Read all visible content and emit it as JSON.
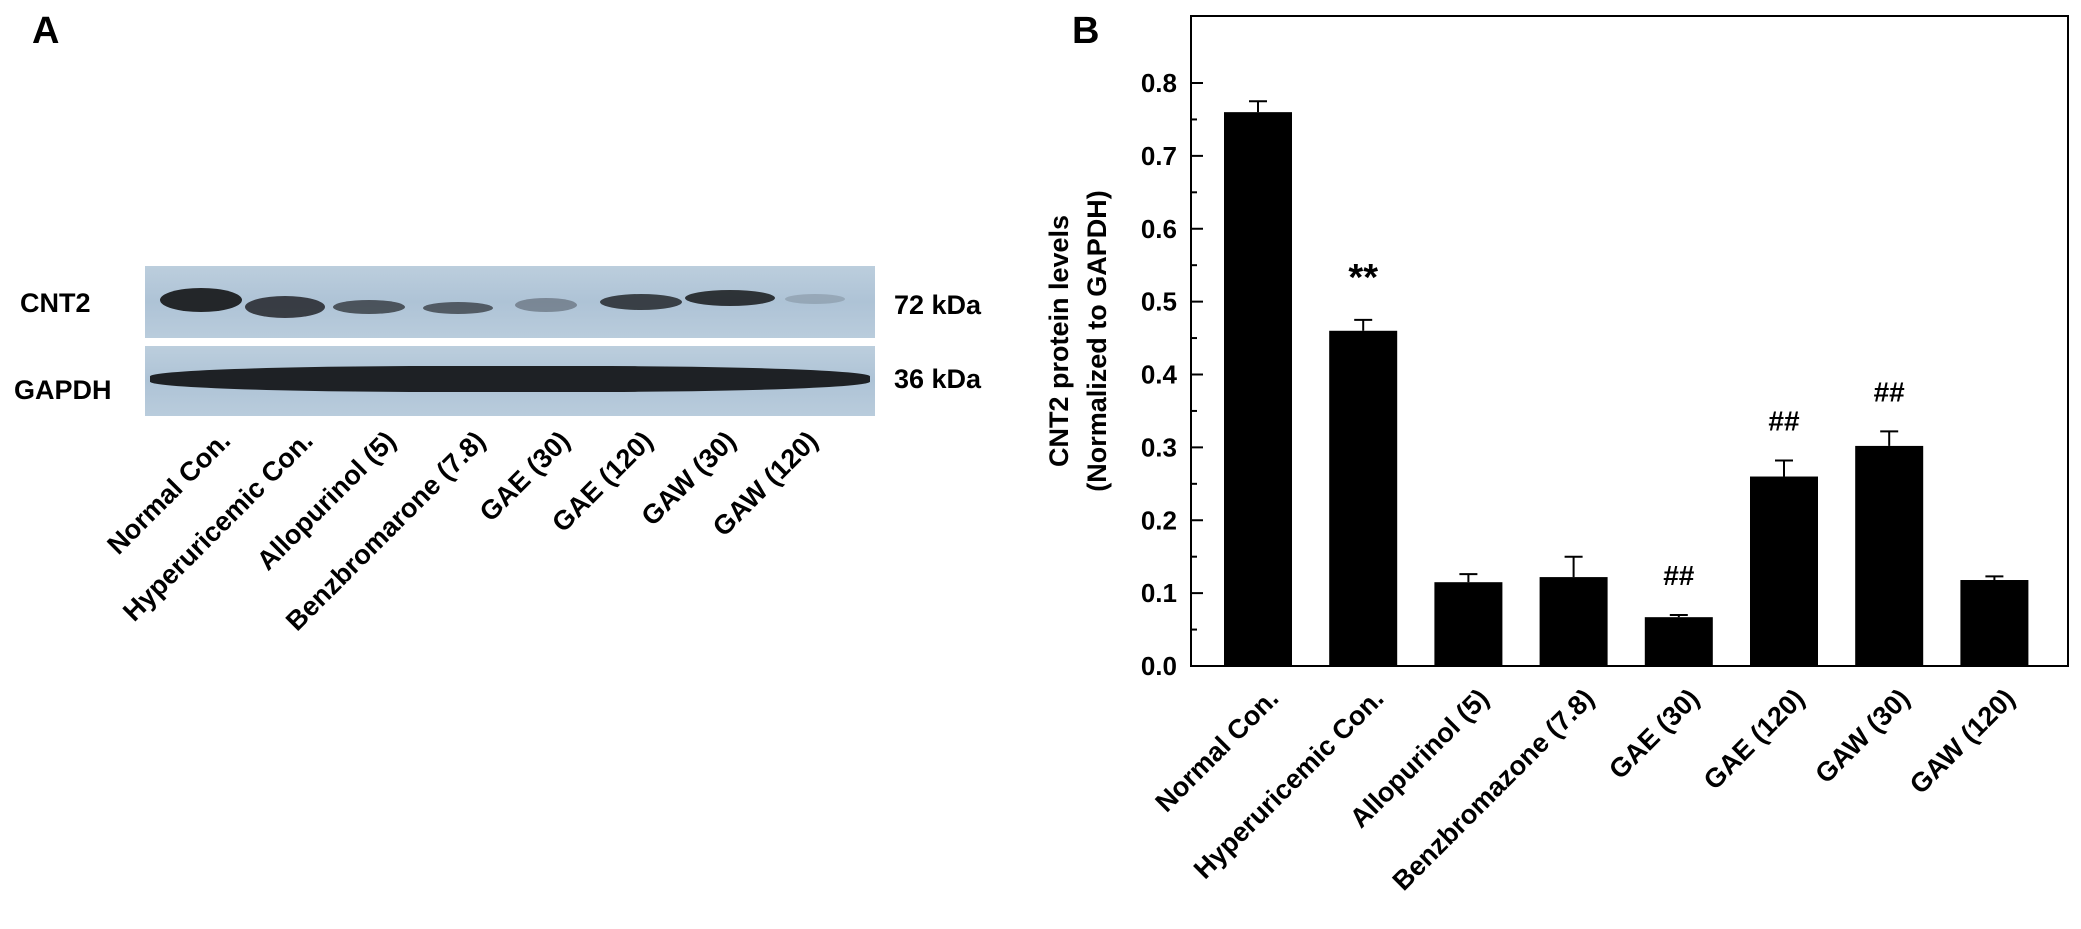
{
  "panel_a": {
    "label": "A",
    "rows": [
      {
        "name": "CNT2",
        "size": "72 kDa"
      },
      {
        "name": "GAPDH",
        "size": "36 kDa"
      }
    ],
    "lanes": [
      "Normal Con.",
      "Hyperuricemic Con.",
      "Allopurinol  (5)",
      "Benzbromarone (7.8)",
      "GAE (30)",
      "GAE (120)",
      "GAW (30)",
      "GAW (120)"
    ]
  },
  "panel_b": {
    "label": "B"
  },
  "chart_data": {
    "type": "bar",
    "categories": [
      "Normal Con.",
      "Hyperuricemic Con.",
      "Allopurinol (5)",
      "Benzbromazone (7.8)",
      "GAE (30)",
      "GAE (120)",
      "GAW (30)",
      "GAW (120)"
    ],
    "values": [
      0.76,
      0.46,
      0.115,
      0.122,
      0.067,
      0.26,
      0.302,
      0.118
    ],
    "errors": [
      0.015,
      0.015,
      0.011,
      0.028,
      0.003,
      0.022,
      0.02,
      0.005
    ],
    "annotations": [
      "",
      "**",
      "",
      "",
      "##",
      "##",
      "##",
      ""
    ],
    "ylabel_line1": "CNT2 protein levels",
    "ylabel_line2": "(Normalized to GAPDH)",
    "xlabel": "",
    "ylim": [
      0,
      0.9
    ],
    "yticks": [
      "0.0",
      "0.1",
      "0.2",
      "0.3",
      "0.4",
      "0.5",
      "0.6",
      "0.7",
      "0.8"
    ],
    "bar_color": "#000000",
    "grid": false
  }
}
